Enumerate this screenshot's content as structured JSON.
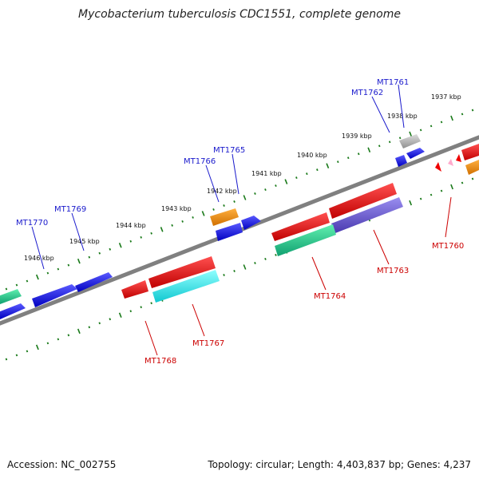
{
  "title": "Mycobacterium tuberculosis CDC1551, complete genome",
  "footer": {
    "accession": "Accession: NC_002755",
    "summary": "Topology: circular; Length: 4,403,837 bp; Genes: 4,237"
  },
  "colors": {
    "backbone": "#808080",
    "tick": "#1a7a1a",
    "forward_label": "#1a1acc",
    "reverse_label": "#cc0000"
  },
  "kbp_labels": [
    "1937 kbp",
    "1938 kbp",
    "1939 kbp",
    "1940 kbp",
    "1941 kbp",
    "1942 kbp",
    "1943 kbp",
    "1944 kbp",
    "1945 kbp",
    "1946 kbp"
  ],
  "forward_genes": [
    {
      "name": "MT1761",
      "color": "#1010dd"
    },
    {
      "name": "MT1762",
      "color": "#a8a8a8"
    },
    {
      "name": "MT1765",
      "color": "#1010dd"
    },
    {
      "name": "MT1766",
      "color": "#ee8800"
    },
    {
      "name": "MT1769",
      "color": "#1010dd"
    },
    {
      "name": "MT1770",
      "color": "#1010dd"
    }
  ],
  "reverse_genes": [
    {
      "name": "MT1760",
      "color": "#ee0000"
    },
    {
      "name": "MT1763",
      "color": "#6a5acd"
    },
    {
      "name": "MT1764",
      "color": "#ee0000"
    },
    {
      "name": "MT1767",
      "color": "#22dddd"
    },
    {
      "name": "MT1768",
      "color": "#ee0000"
    }
  ]
}
